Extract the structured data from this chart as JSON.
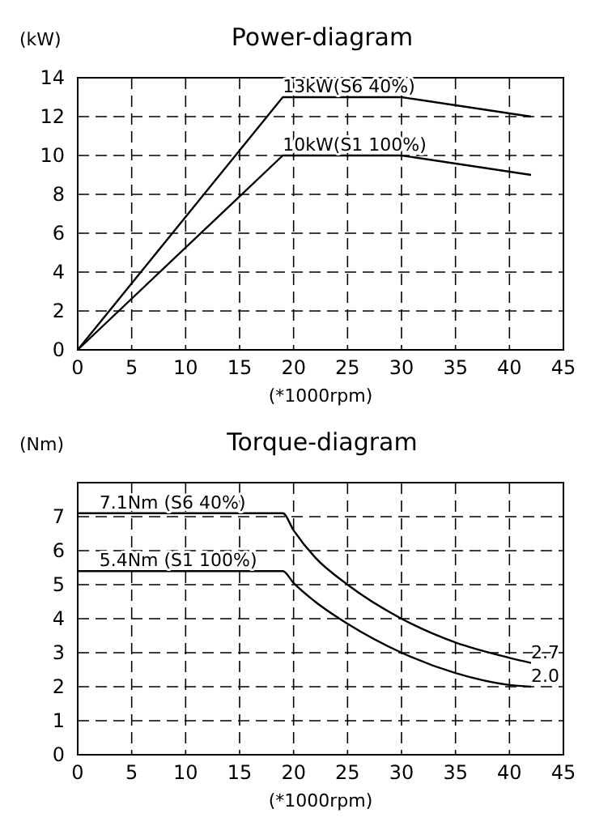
{
  "chart_data": [
    {
      "type": "line",
      "title": "Power-diagram",
      "ylabel": "(kW)",
      "xlabel": "(*1000rpm)",
      "xlim": [
        0,
        45
      ],
      "xticks": [
        0,
        5,
        10,
        15,
        20,
        25,
        30,
        35,
        40,
        45
      ],
      "ylim": [
        0,
        14
      ],
      "yticks": [
        0,
        2,
        4,
        6,
        8,
        10,
        12,
        14
      ],
      "grid": true,
      "line_style": "solid",
      "marker": "none",
      "series": [
        {
          "color": "#000000",
          "x": [
            0,
            19,
            30,
            42
          ],
          "values": [
            0,
            13,
            13,
            12
          ]
        },
        {
          "color": "#000000",
          "x": [
            0,
            19,
            30,
            42
          ],
          "values": [
            0,
            10,
            10,
            9
          ]
        }
      ],
      "annotations": [
        {
          "text": "13kW(S6 40%)",
          "x": 19,
          "y": 13
        },
        {
          "text": "10kW(S1 100%)",
          "x": 19,
          "y": 10
        }
      ]
    },
    {
      "type": "line",
      "title": "Torque-diagram",
      "ylabel": "(Nm)",
      "xlabel": "(*1000rpm)",
      "xlim": [
        0,
        45
      ],
      "xticks": [
        0,
        5,
        10,
        15,
        20,
        25,
        30,
        35,
        40,
        45
      ],
      "ylim": [
        0,
        8
      ],
      "yticks": [
        0,
        1,
        2,
        3,
        4,
        5,
        6,
        7
      ],
      "grid": true,
      "line_style": "solid",
      "marker": "none",
      "series": [
        {
          "color": "#000000",
          "x": [
            0,
            19,
            20,
            22,
            25,
            30,
            35,
            40,
            42
          ],
          "values": [
            7.1,
            7.1,
            6.6,
            5.8,
            5.0,
            4.0,
            3.3,
            2.85,
            2.7
          ]
        },
        {
          "color": "#000000",
          "x": [
            0,
            19,
            20,
            22,
            25,
            30,
            35,
            40,
            42
          ],
          "values": [
            5.4,
            5.4,
            5.05,
            4.5,
            3.85,
            3.0,
            2.4,
            2.05,
            2.0
          ]
        }
      ],
      "annotations": [
        {
          "text": "7.1Nm (S6 40%)",
          "x": 2,
          "y": 7.1
        },
        {
          "text": "5.4Nm (S1 100%)",
          "x": 2,
          "y": 5.4
        },
        {
          "text": "2.7",
          "x": 42,
          "y": 2.7
        },
        {
          "text": "2.0",
          "x": 42,
          "y": 2.0
        }
      ]
    }
  ]
}
